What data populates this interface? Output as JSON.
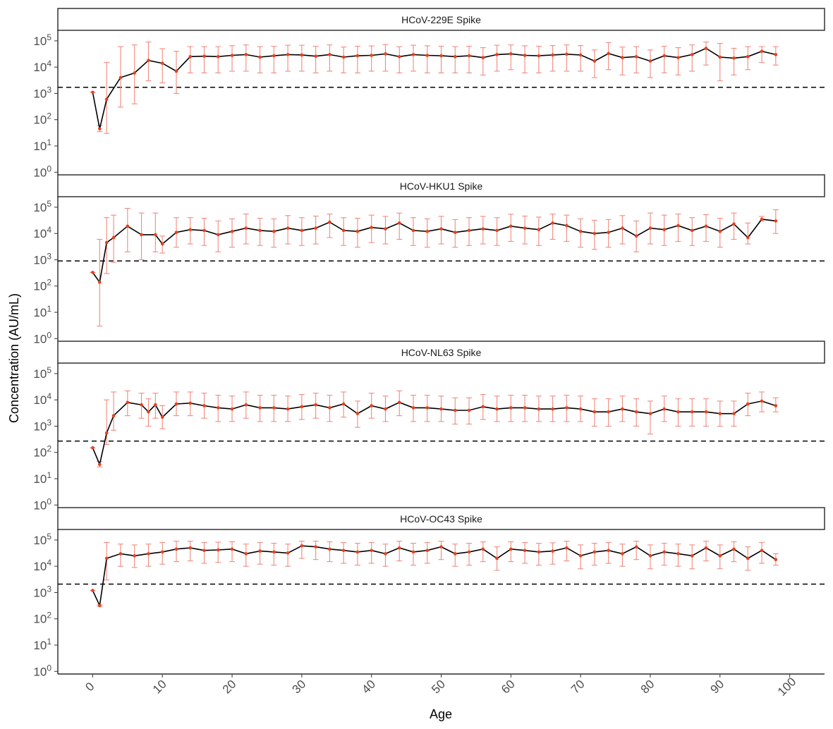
{
  "chart_data": {
    "type": "line",
    "xlabel": "Age",
    "ylabel": "Concentration (AU/mL)",
    "xlim": [
      -5,
      105
    ],
    "ylim_log10": [
      -0.1,
      5.4
    ],
    "scale_y": "log10",
    "x_ticks": [
      0,
      10,
      20,
      30,
      40,
      50,
      60,
      70,
      80,
      90,
      100
    ],
    "y_ticks": [
      {
        "exp": 0,
        "base": "10",
        "sup": "0"
      },
      {
        "exp": 1,
        "base": "10",
        "sup": "1"
      },
      {
        "exp": 2,
        "base": "10",
        "sup": "2"
      },
      {
        "exp": 3,
        "base": "10",
        "sup": "3"
      },
      {
        "exp": 4,
        "base": "10",
        "sup": "4"
      },
      {
        "exp": 5,
        "base": "10",
        "sup": "5"
      }
    ],
    "grid": false,
    "line_color": "#000000",
    "point_color": "#e8401c",
    "errorbar_color": "#f08a80",
    "threshold_style": "dashed",
    "panels": [
      {
        "title": "HCoV-229E Spike",
        "threshold": 1700,
        "x": [
          0,
          1,
          2,
          4,
          6,
          8,
          10,
          12,
          14,
          16,
          18,
          20,
          22,
          24,
          26,
          28,
          30,
          32,
          34,
          36,
          38,
          40,
          42,
          44,
          46,
          48,
          50,
          52,
          54,
          56,
          58,
          60,
          62,
          64,
          66,
          68,
          70,
          72,
          74,
          76,
          78,
          80,
          82,
          84,
          86,
          88,
          90,
          92,
          94,
          96,
          98
        ],
        "y": [
          1100,
          45,
          600,
          4000,
          6000,
          18000,
          14000,
          7000,
          25000,
          26000,
          25000,
          28000,
          30000,
          24000,
          27000,
          30000,
          29000,
          26000,
          30000,
          24000,
          27000,
          28000,
          32000,
          25000,
          30000,
          28000,
          27000,
          25000,
          27000,
          23000,
          30000,
          32000,
          28000,
          27000,
          29000,
          31000,
          29000,
          17000,
          33000,
          23000,
          25000,
          17000,
          27000,
          23000,
          30000,
          52000,
          24000,
          22000,
          25000,
          40000,
          30000
        ],
        "lo": [
          1100,
          35,
          30,
          300,
          400,
          3000,
          2500,
          1000,
          6000,
          6000,
          6000,
          7000,
          7000,
          6000,
          6000,
          7000,
          7000,
          6000,
          7000,
          6000,
          6000,
          7000,
          7000,
          6000,
          7000,
          6000,
          6000,
          6000,
          6000,
          5000,
          7000,
          8000,
          6000,
          6000,
          7000,
          7000,
          7000,
          4000,
          8000,
          5000,
          6000,
          4000,
          6000,
          5000,
          7000,
          12000,
          3000,
          5000,
          8000,
          15000,
          12000
        ],
        "hi": [
          1100,
          60,
          15000,
          60000,
          70000,
          90000,
          50000,
          40000,
          60000,
          60000,
          60000,
          65000,
          70000,
          60000,
          62000,
          68000,
          68000,
          62000,
          70000,
          58000,
          62000,
          64000,
          72000,
          60000,
          68000,
          65000,
          62000,
          60000,
          62000,
          55000,
          68000,
          70000,
          65000,
          62000,
          66000,
          70000,
          66000,
          45000,
          85000,
          58000,
          60000,
          45000,
          62000,
          55000,
          70000,
          90000,
          80000,
          52000,
          60000,
          60000,
          60000
        ]
      },
      {
        "title": "HCoV-HKU1 Spike",
        "threshold": 900,
        "x": [
          0,
          1,
          2,
          3,
          5,
          7,
          9,
          10,
          12,
          14,
          16,
          18,
          20,
          22,
          24,
          26,
          28,
          30,
          32,
          34,
          36,
          38,
          40,
          42,
          44,
          46,
          48,
          50,
          52,
          54,
          56,
          58,
          60,
          62,
          64,
          66,
          68,
          70,
          72,
          74,
          76,
          78,
          80,
          82,
          84,
          86,
          88,
          90,
          92,
          94,
          96,
          98
        ],
        "y": [
          330,
          140,
          4500,
          7000,
          19000,
          9000,
          9000,
          4000,
          11000,
          14000,
          13000,
          9000,
          12000,
          16000,
          13000,
          12000,
          16000,
          13000,
          16000,
          27000,
          13000,
          12000,
          17000,
          15000,
          25000,
          13000,
          12000,
          15000,
          11000,
          13000,
          15000,
          13000,
          19000,
          16000,
          14000,
          25000,
          20000,
          12000,
          10000,
          11000,
          16000,
          8000,
          16000,
          14000,
          20000,
          13000,
          19000,
          12000,
          23000,
          7000,
          35000,
          30000
        ],
        "lo": [
          330,
          3,
          300,
          800,
          2000,
          1000,
          2000,
          1800,
          3000,
          4000,
          3500,
          2000,
          3000,
          4000,
          3500,
          3000,
          4000,
          3500,
          4000,
          7000,
          3500,
          3000,
          4500,
          4000,
          6000,
          3500,
          3000,
          4000,
          3000,
          3500,
          4000,
          3500,
          5000,
          4000,
          3500,
          6000,
          5000,
          3000,
          2500,
          3000,
          4000,
          2000,
          4000,
          3500,
          5000,
          3500,
          5000,
          3000,
          6000,
          4000,
          30000,
          10000
        ],
        "hi": [
          330,
          6000,
          40000,
          50000,
          90000,
          60000,
          60000,
          8000,
          40000,
          40000,
          38000,
          30000,
          36000,
          55000,
          38000,
          36000,
          48000,
          40000,
          46000,
          55000,
          40000,
          38000,
          50000,
          45000,
          60000,
          40000,
          36000,
          45000,
          34000,
          40000,
          45000,
          40000,
          54000,
          46000,
          42000,
          55000,
          50000,
          36000,
          32000,
          34000,
          48000,
          30000,
          60000,
          50000,
          55000,
          40000,
          52000,
          38000,
          60000,
          25000,
          45000,
          80000
        ]
      },
      {
        "title": "HCoV-NL63 Spike",
        "threshold": 270,
        "x": [
          0,
          1,
          2,
          3,
          5,
          7,
          8,
          9,
          10,
          12,
          14,
          16,
          18,
          20,
          22,
          24,
          26,
          28,
          30,
          32,
          34,
          36,
          38,
          40,
          42,
          44,
          46,
          48,
          50,
          52,
          54,
          56,
          58,
          60,
          62,
          64,
          66,
          68,
          70,
          72,
          74,
          76,
          78,
          80,
          82,
          84,
          86,
          88,
          90,
          92,
          94,
          96,
          98
        ],
        "y": [
          150,
          35,
          550,
          2500,
          8000,
          6500,
          3500,
          6500,
          2200,
          7000,
          7500,
          6000,
          5000,
          4500,
          6500,
          5000,
          5000,
          4500,
          5500,
          6500,
          5000,
          7000,
          3000,
          6000,
          4500,
          8000,
          5000,
          5000,
          4500,
          4000,
          4000,
          5500,
          4500,
          5000,
          5000,
          4500,
          4500,
          5000,
          4500,
          3500,
          3500,
          4500,
          3500,
          3000,
          4500,
          3500,
          3500,
          3500,
          3000,
          3000,
          7000,
          9000,
          6000
        ],
        "lo": [
          150,
          28,
          200,
          700,
          2500,
          2000,
          1000,
          2000,
          800,
          2500,
          2500,
          2000,
          1500,
          1500,
          2000,
          1500,
          1500,
          1500,
          1800,
          2000,
          1500,
          2200,
          900,
          2000,
          1500,
          2500,
          1500,
          1500,
          1500,
          1200,
          1200,
          1800,
          1500,
          1500,
          1500,
          1500,
          1500,
          1500,
          1500,
          1000,
          1000,
          1500,
          1000,
          500,
          1500,
          1000,
          1000,
          1000,
          1000,
          1000,
          2500,
          3500,
          3500
        ],
        "hi": [
          150,
          45,
          10000,
          20000,
          22000,
          18000,
          11000,
          18000,
          6000,
          20000,
          20000,
          18000,
          15000,
          14000,
          20000,
          15000,
          15000,
          14000,
          16000,
          18000,
          15000,
          20000,
          9000,
          18000,
          14000,
          22000,
          15000,
          15000,
          14000,
          12000,
          12000,
          16000,
          14000,
          15000,
          15000,
          14000,
          14000,
          15000,
          14000,
          11000,
          11000,
          14000,
          11000,
          9000,
          14000,
          11000,
          11000,
          11000,
          9000,
          9000,
          18000,
          20000,
          12000
        ]
      },
      {
        "title": "HCoV-OC43 Spike",
        "threshold": 2100,
        "x": [
          0,
          1,
          2,
          4,
          6,
          8,
          10,
          12,
          14,
          16,
          18,
          20,
          22,
          24,
          26,
          28,
          30,
          32,
          34,
          36,
          38,
          40,
          42,
          44,
          46,
          48,
          50,
          52,
          54,
          56,
          58,
          60,
          62,
          64,
          66,
          68,
          70,
          72,
          74,
          76,
          78,
          80,
          82,
          84,
          86,
          88,
          90,
          92,
          94,
          96,
          98
        ],
        "y": [
          1200,
          320,
          20000,
          30000,
          25000,
          30000,
          35000,
          45000,
          50000,
          40000,
          42000,
          45000,
          30000,
          38000,
          35000,
          32000,
          60000,
          55000,
          45000,
          40000,
          35000,
          40000,
          30000,
          50000,
          35000,
          40000,
          55000,
          30000,
          35000,
          45000,
          20000,
          45000,
          40000,
          35000,
          38000,
          50000,
          25000,
          35000,
          40000,
          30000,
          55000,
          25000,
          35000,
          30000,
          25000,
          50000,
          25000,
          45000,
          20000,
          40000,
          18000
        ],
        "lo": [
          1200,
          300,
          3000,
          10000,
          9000,
          10000,
          12000,
          15000,
          16000,
          13000,
          14000,
          15000,
          10000,
          12000,
          11000,
          10000,
          20000,
          18000,
          15000,
          13000,
          11000,
          13000,
          10000,
          16000,
          11000,
          13000,
          18000,
          10000,
          11000,
          15000,
          7000,
          15000,
          13000,
          11000,
          12000,
          16000,
          8000,
          11000,
          13000,
          10000,
          18000,
          8000,
          11000,
          10000,
          8000,
          16000,
          8000,
          15000,
          7000,
          13000,
          11000
        ],
        "hi": [
          1200,
          340,
          80000,
          70000,
          65000,
          70000,
          80000,
          90000,
          90000,
          80000,
          82000,
          85000,
          70000,
          80000,
          75000,
          70000,
          90000,
          90000,
          85000,
          80000,
          75000,
          80000,
          70000,
          90000,
          75000,
          80000,
          90000,
          70000,
          75000,
          85000,
          55000,
          85000,
          80000,
          75000,
          78000,
          90000,
          65000,
          75000,
          80000,
          70000,
          90000,
          65000,
          75000,
          70000,
          65000,
          90000,
          65000,
          85000,
          55000,
          80000,
          30000
        ]
      }
    ]
  }
}
